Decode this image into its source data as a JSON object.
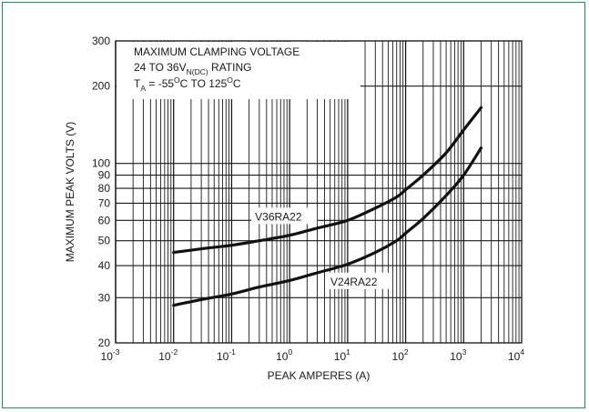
{
  "chart_data": {
    "type": "line",
    "x_scale": "log",
    "y_scale": "log",
    "xlim": [
      0.001,
      10000
    ],
    "ylim": [
      20,
      300
    ],
    "xlabel": "PEAK AMPERES (A)",
    "ylabel": "MAXIMUM PEAK VOLTS (V)",
    "grid": true,
    "x_ticks": [
      {
        "base": "10",
        "exp": "-3",
        "value": 0.001
      },
      {
        "base": "10",
        "exp": "-2",
        "value": 0.01
      },
      {
        "base": "10",
        "exp": "-1",
        "value": 0.1
      },
      {
        "base": "10",
        "exp": "0",
        "value": 1
      },
      {
        "base": "10",
        "exp": "1",
        "value": 10
      },
      {
        "base": "10",
        "exp": "2",
        "value": 100
      },
      {
        "base": "10",
        "exp": "3",
        "value": 1000
      },
      {
        "base": "10",
        "exp": "4",
        "value": 10000
      }
    ],
    "y_ticks": [
      "20",
      "30",
      "40",
      "50",
      "60",
      "70",
      "80",
      "90",
      "100",
      "200",
      "300"
    ],
    "annotation": {
      "line1": "MAXIMUM CLAMPING VOLTAGE",
      "line2_prefix": "24 TO 36V",
      "line2_sub": "N(DC)",
      "line2_suffix": " RATING",
      "line3_prefix": "T",
      "line3_sub": "A",
      "line3_mid": " = -55",
      "line3_sup1": "O",
      "line3_mid2": "C TO 125",
      "line3_sup2": "O",
      "line3_suffix": "C"
    },
    "series": [
      {
        "name": "V36RA22",
        "x": [
          0.01,
          0.03,
          0.1,
          0.3,
          1,
          3,
          10,
          30,
          70,
          100,
          200,
          500,
          1000,
          2000
        ],
        "y": [
          45,
          46.5,
          48,
          50,
          52.5,
          56,
          60,
          67,
          74,
          79,
          90,
          110,
          135,
          165
        ]
      },
      {
        "name": "V24RA22",
        "x": [
          0.01,
          0.03,
          0.1,
          0.3,
          1,
          3,
          10,
          30,
          70,
          100,
          200,
          500,
          1000,
          2000
        ],
        "y": [
          28,
          29.5,
          31,
          33,
          35,
          37.5,
          40.5,
          45,
          50,
          53.5,
          61,
          75,
          90,
          115
        ]
      }
    ]
  }
}
